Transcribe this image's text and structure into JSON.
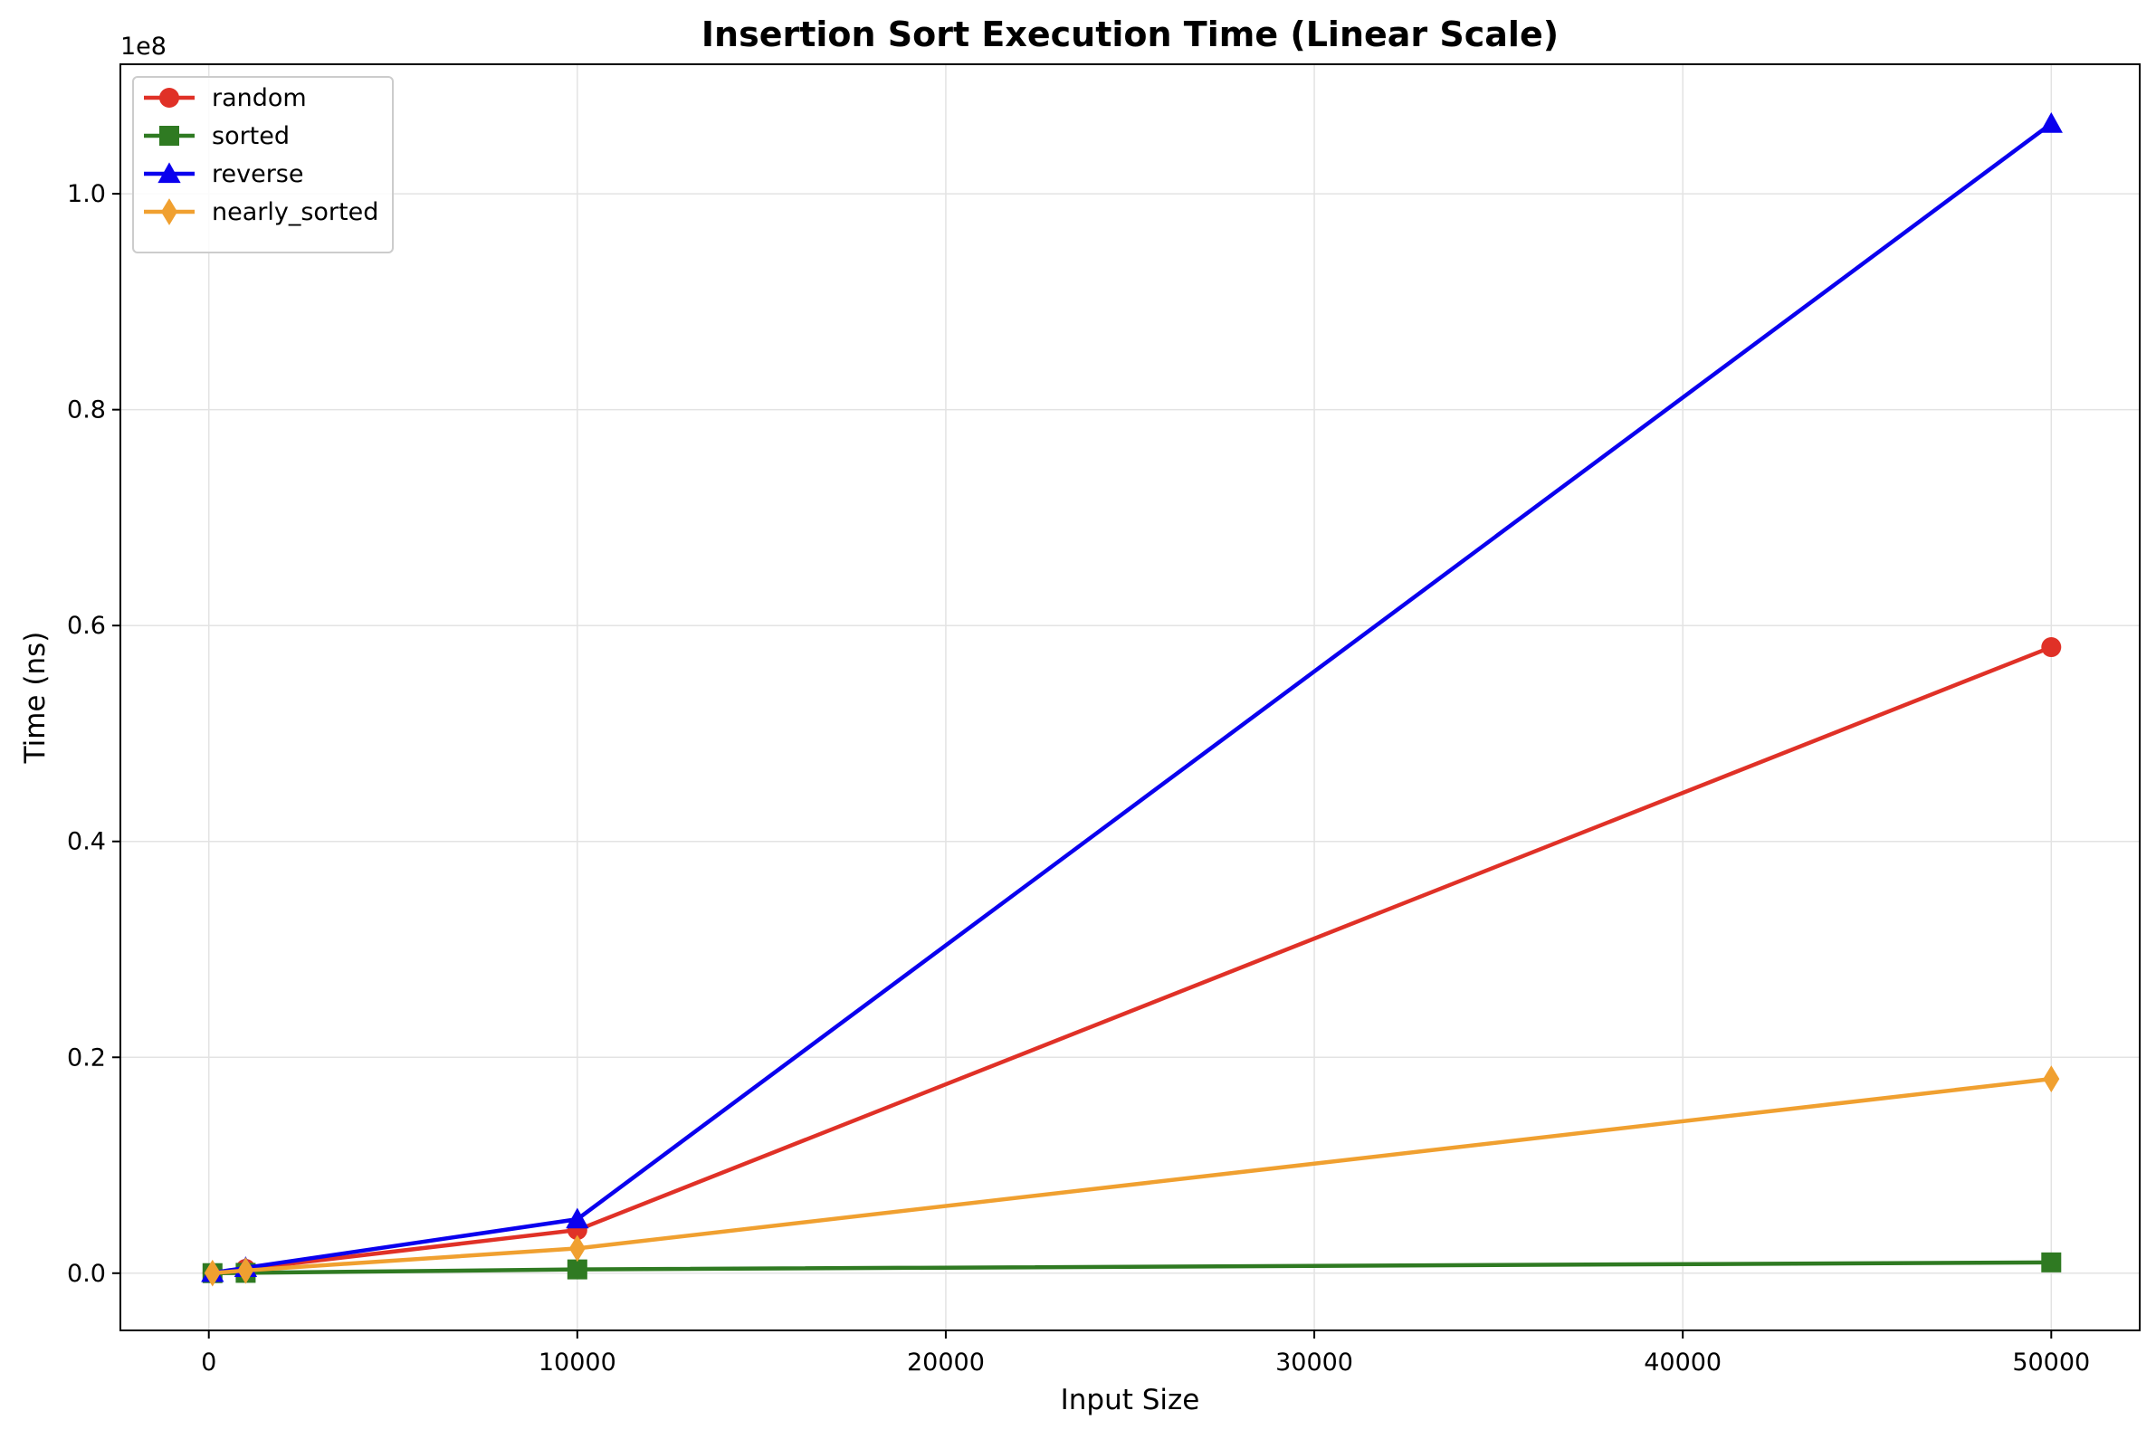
{
  "chart_data": {
    "type": "line",
    "title": "Insertion Sort Execution Time (Linear Scale)",
    "xlabel": "Input Size",
    "ylabel": "Time (ns)",
    "y_offset_label": "1e8",
    "y_scale": 100000000,
    "xlim": [
      -2400,
      52400
    ],
    "ylim": [
      -5300000,
      112000000
    ],
    "x_ticks": [
      0,
      10000,
      20000,
      30000,
      40000,
      50000
    ],
    "x_tick_labels": [
      "0",
      "10000",
      "20000",
      "30000",
      "40000",
      "50000"
    ],
    "y_ticks": [
      0,
      20000000,
      40000000,
      60000000,
      80000000,
      100000000
    ],
    "y_tick_labels": [
      "0.0",
      "0.2",
      "0.4",
      "0.6",
      "0.8",
      "1.0"
    ],
    "grid": true,
    "legend_position": "top-left",
    "x": [
      100,
      1000,
      10000,
      50000
    ],
    "series": [
      {
        "name": "random",
        "color": "#e03127",
        "marker": "circle",
        "values": [
          20000,
          400000,
          4000000,
          58000000
        ]
      },
      {
        "name": "sorted",
        "color": "#2f7a22",
        "marker": "square",
        "values": [
          5000,
          30000,
          350000,
          1000000
        ]
      },
      {
        "name": "reverse",
        "color": "#0a00ee",
        "marker": "triangle",
        "values": [
          30000,
          500000,
          5000000,
          106500000
        ]
      },
      {
        "name": "nearly_sorted",
        "color": "#f0a030",
        "marker": "diamond",
        "values": [
          10000,
          250000,
          2300000,
          18000000
        ]
      }
    ]
  }
}
